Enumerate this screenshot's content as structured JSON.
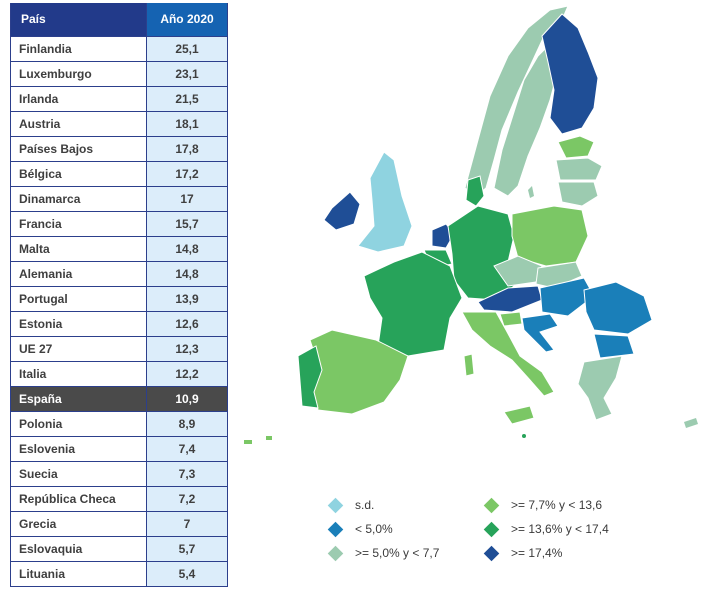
{
  "table": {
    "headers": [
      "País",
      "Año 2020"
    ],
    "rows": [
      {
        "country": "Finlandia",
        "value": "25,1"
      },
      {
        "country": "Luxemburgo",
        "value": "23,1"
      },
      {
        "country": "Irlanda",
        "value": "21,5"
      },
      {
        "country": "Austria",
        "value": "18,1"
      },
      {
        "country": "Países Bajos",
        "value": "17,8"
      },
      {
        "country": "Bélgica",
        "value": "17,2"
      },
      {
        "country": "Dinamarca",
        "value": "17"
      },
      {
        "country": "Francia",
        "value": "15,7"
      },
      {
        "country": "Malta",
        "value": "14,8"
      },
      {
        "country": "Alemania",
        "value": "14,8"
      },
      {
        "country": "Portugal",
        "value": "13,9"
      },
      {
        "country": "Estonia",
        "value": "12,6"
      },
      {
        "country": "UE 27",
        "value": "12,3"
      },
      {
        "country": "Italia",
        "value": "12,2"
      },
      {
        "country": "España",
        "value": "10,9",
        "highlight": true
      },
      {
        "country": "Polonia",
        "value": "8,9"
      },
      {
        "country": "Eslovenia",
        "value": "7,4"
      },
      {
        "country": "Suecia",
        "value": "7,3"
      },
      {
        "country": "República Checa",
        "value": "7,2"
      },
      {
        "country": "Grecia",
        "value": "7"
      },
      {
        "country": "Eslovaquia",
        "value": "5,7"
      },
      {
        "country": "Lituania",
        "value": "5,4"
      }
    ]
  },
  "legend": {
    "items": [
      {
        "label": "s.d.",
        "color": "#8fd3e0"
      },
      {
        "label": "< 5,0%",
        "color": "#1a7fb9"
      },
      {
        "label": ">= 5,0% y < 7,7",
        "color": "#9ccbb0"
      },
      {
        "label": ">= 7,7% y < 13,6",
        "color": "#7bc765"
      },
      {
        "label": ">= 13,6% y < 17,4",
        "color": "#27a35a"
      },
      {
        "label": ">= 17,4%",
        "color": "#1f4e96"
      }
    ]
  },
  "colors": {
    "sd": "#8fd3e0",
    "lt5": "#1a7fb9",
    "c5_77": "#9ccbb0",
    "c77_136": "#7bc765",
    "c136_174": "#27a35a",
    "ge174": "#1f4e96",
    "header_dark": "#223a8a",
    "header_blue": "#1563b2",
    "highlight": "#4a4a4a"
  }
}
